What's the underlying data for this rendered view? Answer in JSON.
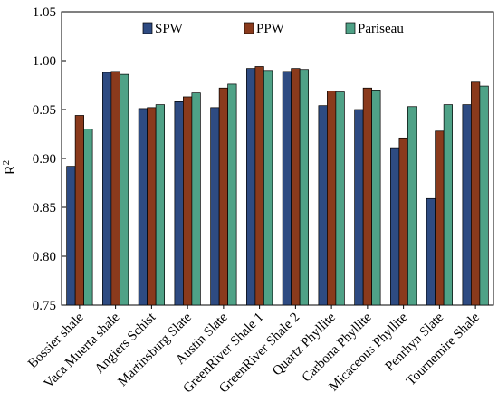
{
  "chart_data": {
    "type": "bar",
    "title": "",
    "xlabel": "",
    "ylabel": "R",
    "ylabel_superscript": "2",
    "ylim": [
      0.75,
      1.05
    ],
    "yticks": [
      "0.75",
      "0.80",
      "0.85",
      "0.90",
      "0.95",
      "1.00",
      "1.05"
    ],
    "legend_position": "top",
    "grid": false,
    "categories": [
      "Bossier shale",
      "Vaca Muerta shale",
      "Angiers Schist",
      "Martinsburg Slate",
      "Austin Slate",
      "GreenRiver Shale 1",
      "GreenRiver Shale 2",
      "Quartz Phyllite",
      "Carbona Phyllite",
      "Micaceous Phyllite",
      "Penrhyn Slate",
      "Tournemire Shale"
    ],
    "series": [
      {
        "name": "SPW",
        "color": "#2e4b82",
        "values": [
          0.892,
          0.988,
          0.951,
          0.958,
          0.952,
          0.992,
          0.989,
          0.954,
          0.95,
          0.911,
          0.859,
          0.955
        ]
      },
      {
        "name": "PPW",
        "color": "#8a3a1c",
        "values": [
          0.944,
          0.989,
          0.952,
          0.963,
          0.972,
          0.994,
          0.992,
          0.969,
          0.972,
          0.921,
          0.928,
          0.978
        ]
      },
      {
        "name": "Pariseau",
        "color": "#4fa287",
        "values": [
          0.93,
          0.986,
          0.955,
          0.967,
          0.976,
          0.99,
          0.991,
          0.968,
          0.97,
          0.953,
          0.955,
          0.974
        ]
      }
    ]
  }
}
